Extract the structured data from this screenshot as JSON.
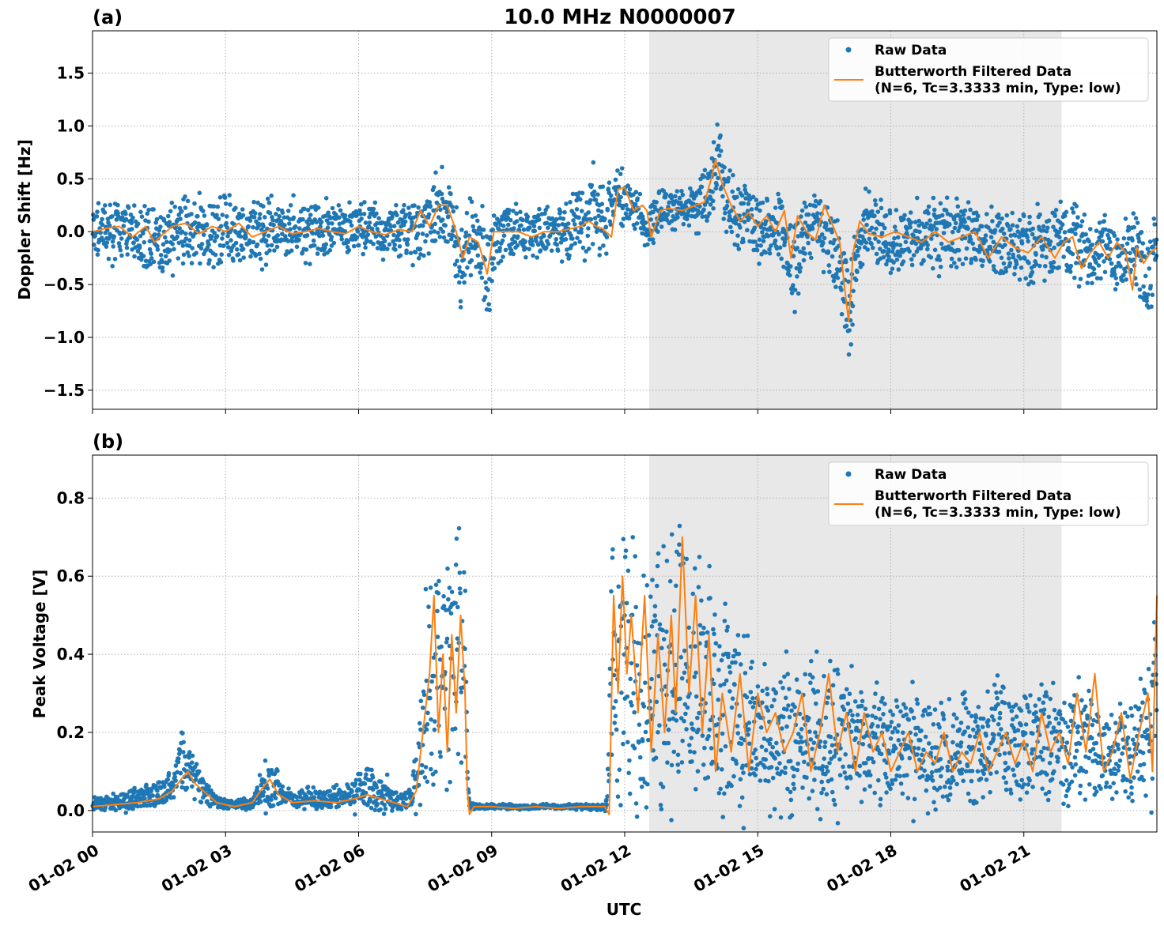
{
  "title": "10.0 MHz N0000007",
  "xlabel": "UTC",
  "x_ticks": [
    "01-02 00",
    "01-02 03",
    "01-02 06",
    "01-02 09",
    "01-02 12",
    "01-02 15",
    "01-02 18",
    "01-02 21"
  ],
  "colors": {
    "raw": "#1f77b4",
    "filtered": "#ff7f0e",
    "shade": "#e8e8e8",
    "grid": "#b0b0b0"
  },
  "legend": {
    "raw_label": "Raw Data",
    "filtered_label_line1": "Butterworth Filtered Data",
    "filtered_label_line2": "(N=6, Tc=3.3333 min, Type: low)"
  },
  "chart_data": [
    {
      "type": "scatter",
      "panel_label": "(a)",
      "title": "10.0 MHz N0000007",
      "xlabel": "",
      "ylabel": "Doppler Shift [Hz]",
      "xlim_hours": [
        0,
        24
      ],
      "ylim": [
        -1.68,
        1.9
      ],
      "yticks": [
        -1.5,
        -1.0,
        -0.5,
        0.0,
        0.5,
        1.0,
        1.5
      ],
      "ytick_labels": [
        "−1.5",
        "−1.0",
        "−0.5",
        "0.0",
        "0.5",
        "1.0",
        "1.5"
      ],
      "shaded_interval_hours": [
        12.55,
        21.85
      ],
      "grid": true,
      "legend_position": "top-right",
      "series": [
        {
          "name": "Raw Data",
          "style": "points",
          "x_hours": [
            0.0,
            0.5,
            1.0,
            1.5,
            2.0,
            2.5,
            3.0,
            3.5,
            4.0,
            4.5,
            5.0,
            5.5,
            6.0,
            6.5,
            7.0,
            7.4,
            7.8,
            8.1,
            8.3,
            8.6,
            8.9,
            9.2,
            9.6,
            10.0,
            10.4,
            10.7,
            11.0,
            11.3,
            11.6,
            11.8,
            12.0,
            12.3,
            12.5,
            12.8,
            13.2,
            13.6,
            13.9,
            14.1,
            14.3,
            14.6,
            15.0,
            15.5,
            15.8,
            16.1,
            16.5,
            16.8,
            17.1,
            17.4,
            17.8,
            18.2,
            18.6,
            19.0,
            19.5,
            20.0,
            20.5,
            21.0,
            21.5,
            21.8,
            22.1,
            22.5,
            22.8,
            23.2,
            23.5,
            23.8,
            24.0
          ],
          "y_center": [
            0.0,
            0.0,
            0.02,
            -0.12,
            0.04,
            0.0,
            0.02,
            -0.02,
            0.0,
            0.0,
            0.0,
            0.0,
            0.05,
            0.0,
            0.0,
            -0.02,
            0.22,
            0.1,
            -0.3,
            0.0,
            -0.3,
            0.0,
            0.0,
            0.0,
            0.0,
            0.0,
            0.08,
            0.2,
            0.1,
            0.38,
            0.25,
            0.22,
            -0.02,
            0.22,
            0.22,
            0.25,
            0.35,
            0.62,
            0.2,
            0.15,
            0.05,
            0.08,
            -0.3,
            0.1,
            0.05,
            -0.25,
            -0.72,
            0.05,
            -0.05,
            -0.05,
            -0.1,
            -0.05,
            0.0,
            -0.05,
            -0.1,
            -0.15,
            -0.15,
            -0.05,
            -0.05,
            -0.3,
            -0.1,
            -0.25,
            -0.12,
            -0.5,
            -0.15
          ],
          "y_spread": [
            0.25,
            0.25,
            0.28,
            0.35,
            0.3,
            0.3,
            0.32,
            0.3,
            0.28,
            0.25,
            0.24,
            0.24,
            0.25,
            0.25,
            0.24,
            0.25,
            0.32,
            0.3,
            0.4,
            0.3,
            0.5,
            0.22,
            0.22,
            0.22,
            0.22,
            0.28,
            0.32,
            0.35,
            0.3,
            0.28,
            0.2,
            0.2,
            0.18,
            0.18,
            0.18,
            0.2,
            0.25,
            0.35,
            0.3,
            0.32,
            0.3,
            0.3,
            0.4,
            0.3,
            0.32,
            0.4,
            0.5,
            0.3,
            0.3,
            0.28,
            0.28,
            0.3,
            0.3,
            0.3,
            0.32,
            0.32,
            0.32,
            0.32,
            0.35,
            0.35,
            0.3,
            0.3,
            0.3,
            0.45,
            0.3
          ]
        },
        {
          "name": "Butterworth Filtered Data",
          "style": "line",
          "x_hours": [
            0.0,
            0.3,
            0.6,
            0.9,
            1.2,
            1.4,
            1.6,
            1.8,
            2.1,
            2.4,
            2.7,
            3.0,
            3.3,
            3.6,
            3.9,
            4.2,
            4.5,
            4.8,
            5.1,
            5.4,
            5.7,
            6.0,
            6.3,
            6.6,
            6.9,
            7.2,
            7.4,
            7.6,
            7.8,
            8.0,
            8.2,
            8.35,
            8.5,
            8.7,
            8.9,
            9.05,
            9.3,
            9.6,
            9.9,
            10.2,
            10.5,
            10.8,
            11.0,
            11.2,
            11.35,
            11.5,
            11.7,
            11.85,
            12.0,
            12.2,
            12.4,
            12.5,
            12.6,
            12.8,
            13.0,
            13.3,
            13.6,
            13.8,
            13.95,
            14.05,
            14.2,
            14.4,
            14.6,
            14.8,
            15.0,
            15.2,
            15.4,
            15.6,
            15.75,
            15.9,
            16.1,
            16.3,
            16.5,
            16.7,
            16.85,
            16.95,
            17.05,
            17.15,
            17.3,
            17.5,
            17.8,
            18.1,
            18.4,
            18.7,
            19.0,
            19.3,
            19.6,
            19.9,
            20.2,
            20.5,
            20.8,
            21.1,
            21.4,
            21.7,
            21.9,
            22.1,
            22.3,
            22.5,
            22.7,
            22.9,
            23.1,
            23.3,
            23.45,
            23.55,
            23.7,
            23.85,
            24.0
          ],
          "y": [
            0.0,
            0.03,
            0.05,
            -0.05,
            0.05,
            -0.1,
            -0.02,
            0.05,
            0.08,
            -0.02,
            0.05,
            0.0,
            0.08,
            -0.05,
            0.0,
            0.05,
            -0.02,
            0.0,
            0.03,
            0.0,
            -0.02,
            0.05,
            0.0,
            -0.03,
            0.02,
            0.0,
            0.2,
            0.05,
            0.25,
            0.25,
            0.0,
            -0.25,
            -0.05,
            -0.1,
            -0.4,
            0.0,
            0.0,
            0.0,
            -0.05,
            0.0,
            0.0,
            0.03,
            0.05,
            0.1,
            0.05,
            0.03,
            -0.05,
            0.4,
            0.42,
            0.2,
            0.25,
            0.2,
            -0.05,
            0.2,
            0.22,
            0.2,
            0.25,
            0.28,
            0.5,
            0.68,
            0.45,
            0.25,
            0.1,
            0.18,
            0.05,
            0.15,
            0.0,
            0.2,
            -0.25,
            0.15,
            0.0,
            -0.08,
            0.25,
            0.05,
            -0.1,
            -0.5,
            -0.85,
            -0.2,
            0.1,
            -0.02,
            -0.05,
            0.0,
            -0.05,
            -0.1,
            0.0,
            -0.1,
            -0.05,
            0.0,
            -0.25,
            -0.05,
            -0.15,
            -0.2,
            -0.05,
            -0.25,
            -0.1,
            -0.05,
            -0.35,
            -0.2,
            -0.1,
            -0.25,
            -0.1,
            -0.2,
            -0.55,
            -0.15,
            -0.3,
            -0.2,
            -0.15
          ]
        }
      ]
    },
    {
      "type": "scatter",
      "panel_label": "(b)",
      "title": "",
      "xlabel": "UTC",
      "ylabel": "Peak Voltage [V]",
      "xlim_hours": [
        0,
        24
      ],
      "ylim": [
        -0.055,
        0.91
      ],
      "yticks": [
        0.0,
        0.2,
        0.4,
        0.6,
        0.8
      ],
      "ytick_labels": [
        "0.0",
        "0.2",
        "0.4",
        "0.6",
        "0.8"
      ],
      "shaded_interval_hours": [
        12.55,
        21.85
      ],
      "grid": true,
      "legend_position": "top-right",
      "series": [
        {
          "name": "Raw Data",
          "style": "points",
          "x_hours": [
            0.0,
            0.5,
            1.0,
            1.5,
            1.8,
            2.0,
            2.2,
            2.5,
            2.8,
            3.2,
            3.6,
            3.9,
            4.1,
            4.4,
            4.8,
            5.3,
            5.8,
            6.1,
            6.5,
            6.9,
            7.2,
            7.4,
            7.6,
            7.8,
            8.0,
            8.2,
            8.4,
            8.5,
            8.7,
            9.0,
            9.5,
            10.0,
            10.5,
            11.0,
            11.5,
            11.6,
            11.7,
            12.0,
            12.3,
            12.6,
            12.9,
            13.2,
            13.5,
            13.8,
            14.1,
            14.4,
            14.8,
            15.2,
            15.6,
            16.0,
            16.4,
            16.8,
            17.2,
            17.6,
            18.0,
            18.4,
            18.8,
            19.2,
            19.6,
            20.0,
            20.4,
            20.8,
            21.2,
            21.6,
            22.0,
            22.4,
            22.8,
            23.2,
            23.6,
            23.9,
            24.0
          ],
          "y_center": [
            0.02,
            0.02,
            0.03,
            0.04,
            0.07,
            0.12,
            0.1,
            0.05,
            0.02,
            0.015,
            0.02,
            0.07,
            0.06,
            0.03,
            0.03,
            0.03,
            0.04,
            0.06,
            0.05,
            0.02,
            0.03,
            0.15,
            0.35,
            0.38,
            0.35,
            0.35,
            0.3,
            0.01,
            0.01,
            0.01,
            0.01,
            0.01,
            0.01,
            0.01,
            0.01,
            0.01,
            0.35,
            0.4,
            0.3,
            0.35,
            0.38,
            0.4,
            0.35,
            0.3,
            0.28,
            0.25,
            0.22,
            0.2,
            0.2,
            0.2,
            0.2,
            0.2,
            0.18,
            0.17,
            0.15,
            0.15,
            0.15,
            0.15,
            0.16,
            0.15,
            0.17,
            0.16,
            0.17,
            0.18,
            0.17,
            0.2,
            0.12,
            0.16,
            0.18,
            0.2,
            0.35
          ],
          "y_spread": [
            0.015,
            0.02,
            0.025,
            0.035,
            0.05,
            0.08,
            0.06,
            0.03,
            0.015,
            0.01,
            0.015,
            0.06,
            0.05,
            0.02,
            0.025,
            0.025,
            0.03,
            0.05,
            0.05,
            0.02,
            0.03,
            0.12,
            0.3,
            0.3,
            0.3,
            0.3,
            0.28,
            0.01,
            0.006,
            0.006,
            0.006,
            0.006,
            0.006,
            0.006,
            0.01,
            0.02,
            0.3,
            0.33,
            0.3,
            0.33,
            0.35,
            0.35,
            0.3,
            0.28,
            0.25,
            0.22,
            0.2,
            0.18,
            0.18,
            0.18,
            0.18,
            0.18,
            0.15,
            0.14,
            0.13,
            0.13,
            0.13,
            0.13,
            0.13,
            0.13,
            0.14,
            0.14,
            0.14,
            0.15,
            0.14,
            0.16,
            0.1,
            0.12,
            0.15,
            0.2,
            0.25
          ]
        },
        {
          "name": "Butterworth Filtered Data",
          "style": "line",
          "x_hours": [
            0.0,
            0.5,
            1.0,
            1.5,
            1.8,
            2.0,
            2.15,
            2.3,
            2.5,
            2.8,
            3.2,
            3.6,
            3.85,
            4.0,
            4.2,
            4.5,
            5.0,
            5.5,
            5.9,
            6.2,
            6.5,
            6.8,
            7.1,
            7.3,
            7.45,
            7.6,
            7.7,
            7.8,
            7.9,
            8.0,
            8.1,
            8.2,
            8.3,
            8.4,
            8.45,
            8.5,
            8.6,
            9.0,
            9.5,
            10.0,
            10.5,
            11.0,
            11.4,
            11.55,
            11.65,
            11.75,
            11.85,
            11.95,
            12.05,
            12.15,
            12.3,
            12.45,
            12.6,
            12.75,
            12.9,
            13.05,
            13.15,
            13.3,
            13.45,
            13.6,
            13.75,
            13.9,
            14.05,
            14.2,
            14.4,
            14.6,
            14.8,
            15.0,
            15.2,
            15.4,
            15.6,
            15.8,
            16.0,
            16.2,
            16.4,
            16.6,
            16.8,
            17.0,
            17.2,
            17.4,
            17.6,
            17.8,
            18.0,
            18.2,
            18.4,
            18.6,
            18.8,
            19.0,
            19.2,
            19.4,
            19.6,
            19.8,
            20.0,
            20.2,
            20.4,
            20.6,
            20.8,
            21.0,
            21.2,
            21.4,
            21.6,
            21.8,
            22.0,
            22.2,
            22.4,
            22.6,
            22.8,
            23.0,
            23.2,
            23.4,
            23.6,
            23.8,
            23.9,
            24.0
          ],
          "y": [
            0.01,
            0.015,
            0.02,
            0.03,
            0.05,
            0.08,
            0.1,
            0.07,
            0.05,
            0.02,
            0.01,
            0.02,
            0.06,
            0.08,
            0.04,
            0.02,
            0.025,
            0.02,
            0.03,
            0.04,
            0.03,
            0.02,
            0.01,
            0.05,
            0.2,
            0.35,
            0.55,
            0.2,
            0.4,
            0.15,
            0.45,
            0.25,
            0.5,
            0.3,
            0.05,
            -0.01,
            0.01,
            0.01,
            0.005,
            0.01,
            0.005,
            0.01,
            0.01,
            0.01,
            -0.01,
            0.55,
            0.3,
            0.6,
            0.35,
            0.5,
            0.25,
            0.55,
            0.15,
            0.45,
            0.2,
            0.5,
            0.25,
            0.7,
            0.3,
            0.55,
            0.2,
            0.45,
            0.1,
            0.3,
            0.15,
            0.35,
            0.1,
            0.3,
            0.2,
            0.25,
            0.15,
            0.2,
            0.3,
            0.1,
            0.2,
            0.35,
            0.15,
            0.25,
            0.1,
            0.25,
            0.15,
            0.2,
            0.1,
            0.15,
            0.2,
            0.1,
            0.15,
            0.12,
            0.2,
            0.1,
            0.15,
            0.12,
            0.2,
            0.1,
            0.15,
            0.2,
            0.12,
            0.18,
            0.1,
            0.25,
            0.15,
            0.2,
            0.12,
            0.3,
            0.15,
            0.35,
            0.1,
            0.15,
            0.25,
            0.08,
            0.2,
            0.3,
            0.1,
            0.55
          ]
        }
      ]
    }
  ]
}
